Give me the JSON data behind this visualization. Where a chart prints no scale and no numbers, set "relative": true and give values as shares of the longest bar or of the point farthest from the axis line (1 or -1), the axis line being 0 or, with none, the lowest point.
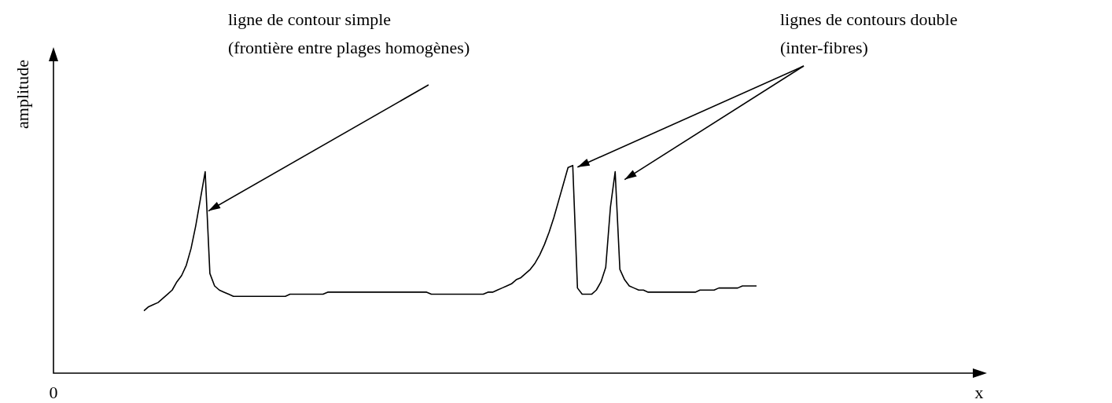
{
  "chart_data": {
    "type": "line",
    "relative": true,
    "legend": false,
    "marker": "none",
    "line_style": "solid",
    "categories": [
      null,
      null,
      null,
      null,
      null,
      null,
      null,
      null,
      null,
      null,
      null,
      null,
      null,
      null,
      null,
      null,
      null,
      null,
      null,
      null,
      null,
      null,
      null,
      null,
      null,
      null,
      null,
      null,
      null,
      null,
      null,
      null,
      null,
      null,
      null,
      null,
      null,
      null,
      null,
      null,
      null,
      null,
      null,
      null,
      null,
      null,
      null,
      null,
      null,
      null,
      null,
      null,
      null,
      null,
      null,
      null,
      null,
      null,
      null,
      null,
      null,
      null,
      null,
      null,
      null,
      null,
      null,
      null,
      null,
      null,
      null,
      null,
      null,
      null,
      null,
      null,
      null,
      null,
      null,
      null,
      null,
      null,
      null,
      null,
      null,
      null,
      null,
      null,
      null,
      null,
      null,
      null,
      null,
      null,
      null,
      null,
      null,
      null,
      null,
      null,
      null,
      null,
      null,
      null,
      null,
      null,
      null,
      null,
      null,
      null,
      null,
      null,
      null,
      null,
      null,
      null,
      null,
      null,
      null,
      null,
      null,
      null,
      null,
      null,
      null,
      null,
      null,
      null,
      null,
      null,
      null
    ],
    "series": [
      {
        "color": "#000000",
        "values": [
          0.3,
          0.32,
          0.33,
          0.34,
          0.36,
          0.38,
          0.4,
          0.44,
          0.47,
          0.52,
          0.6,
          0.71,
          0.84,
          0.97,
          0.48,
          0.42,
          0.4,
          0.39,
          0.38,
          0.37,
          0.37,
          0.37,
          0.37,
          0.37,
          0.37,
          0.37,
          0.37,
          0.37,
          0.37,
          0.37,
          0.37,
          0.38,
          0.38,
          0.38,
          0.38,
          0.38,
          0.38,
          0.38,
          0.38,
          0.39,
          0.39,
          0.39,
          0.39,
          0.39,
          0.39,
          0.39,
          0.39,
          0.39,
          0.39,
          0.39,
          0.39,
          0.39,
          0.39,
          0.39,
          0.39,
          0.39,
          0.39,
          0.39,
          0.39,
          0.39,
          0.39,
          0.38,
          0.38,
          0.38,
          0.38,
          0.38,
          0.38,
          0.38,
          0.38,
          0.38,
          0.38,
          0.38,
          0.38,
          0.39,
          0.39,
          0.4,
          0.41,
          0.42,
          0.43,
          0.45,
          0.46,
          0.48,
          0.5,
          0.53,
          0.57,
          0.62,
          0.68,
          0.75,
          0.83,
          0.91,
          0.99,
          1,
          0.41,
          0.38,
          0.38,
          0.38,
          0.4,
          0.44,
          0.51,
          0.8,
          0.97,
          0.5,
          0.45,
          0.42,
          0.41,
          0.4,
          0.4,
          0.39,
          0.39,
          0.39,
          0.39,
          0.39,
          0.39,
          0.39,
          0.39,
          0.39,
          0.39,
          0.39,
          0.4,
          0.4,
          0.4,
          0.4,
          0.41,
          0.41,
          0.41,
          0.41,
          0.41,
          0.42,
          0.42,
          0.42,
          0.42
        ]
      }
    ],
    "annotations": [
      "ligne de contour simple\n(frontière entre plages homogènes)",
      "lignes de contours double\n(inter-fibres)",
      "0",
      "amplitude",
      "x"
    ]
  }
}
